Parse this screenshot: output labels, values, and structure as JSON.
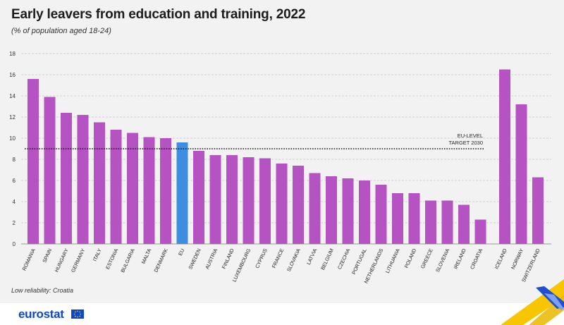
{
  "header": {
    "title": "Early leavers from education and training, 2022",
    "subtitle": "(% of population aged 18-24)"
  },
  "footnote": "Low reliability: Croatia",
  "branding": {
    "logo_text": "eurostat"
  },
  "colors": {
    "bar": "#b653c3",
    "eu_bar": "#3d8ee0",
    "target_line": "#1a1a1a",
    "grid": "#c8c8c8",
    "background": "#f2f2f2",
    "logo": "#0e47cb"
  },
  "chart_data": {
    "type": "bar",
    "title": "Early leavers from education and training, 2022",
    "subtitle": "(% of population aged 18-24)",
    "xlabel": "",
    "ylabel": "",
    "ylim": [
      0,
      18
    ],
    "yticks": [
      0,
      2,
      4,
      6,
      8,
      10,
      12,
      14,
      16,
      18
    ],
    "grid": true,
    "categories": [
      "ROMANIA",
      "SPAIN",
      "HUNGARY",
      "GERMANY",
      "ITALY",
      "ESTONIA",
      "BULGARIA",
      "MALTA",
      "DENMARK",
      "EU",
      "SWEDEN",
      "AUSTRIA",
      "FINLAND",
      "LUXEMBOURG",
      "CYPRUS",
      "FRANCE",
      "SLOVAKIA",
      "LATVIA",
      "BELGIUM",
      "CZECHIA",
      "PORTUGAL",
      "NETHERLANDS",
      "LITHUANIA",
      "POLAND",
      "GREECE",
      "SLOVENIA",
      "IRELAND",
      "CROATIA",
      "ICELAND",
      "NORWAY",
      "SWITZERLAND"
    ],
    "values": [
      15.6,
      13.9,
      12.4,
      12.2,
      11.5,
      10.8,
      10.5,
      10.1,
      10.0,
      9.6,
      8.8,
      8.4,
      8.4,
      8.2,
      8.1,
      7.6,
      7.4,
      6.7,
      6.4,
      6.2,
      6.0,
      5.6,
      4.8,
      4.8,
      4.1,
      4.1,
      3.7,
      2.3,
      16.5,
      13.2,
      6.3
    ],
    "highlight": "EU",
    "reference_line": {
      "value": 9.0,
      "label_line1": "EU-LEVEL",
      "label_line2": "TARGET 2030"
    }
  }
}
